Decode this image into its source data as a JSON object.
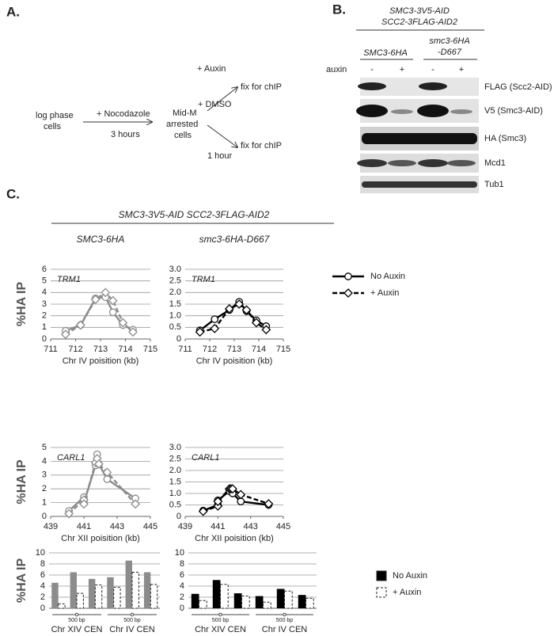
{
  "panel_a": {
    "label": "A.",
    "start": [
      "log phase",
      "cells"
    ],
    "treatment": "+ Nocodazole",
    "duration": "3 hours",
    "arrested": [
      "Mid-M",
      "arrested",
      "cells"
    ],
    "branch_1": "+ Auxin",
    "branch_2": "+ DMSO",
    "branch_duration": "1 hour",
    "end_1": "fix for chIP",
    "end_2": "fix for chIP"
  },
  "panel_b": {
    "label": "B.",
    "strain": [
      "SMC3-3V5-AID",
      "SCC2-3FLAG-AID2"
    ],
    "group_1": "SMC3-6HA",
    "group_2": [
      "smc3-6HA",
      "-D667"
    ],
    "row_label": "auxin",
    "lanes": [
      "-",
      "+",
      "-",
      "+"
    ],
    "blots": [
      "FLAG (Scc2-AID)",
      "V5 (Smc3-AID)",
      "HA (Smc3)",
      "Mcd1",
      "Tub1"
    ]
  },
  "panel_c": {
    "label": "C.",
    "strain": "SMC3-3V5-AID SCC2-3FLAG-AID2"
  },
  "chart_data": [
    {
      "type": "line",
      "title": "SMC3-6HA",
      "annotation": "TRM1",
      "x_label": "Chr IV poisition (kb)",
      "y_label": "%HA IP",
      "grid": true,
      "x": [
        711.6,
        712.2,
        712.8,
        713.2,
        713.5,
        713.9,
        714.3
      ],
      "xlim": [
        711,
        715
      ],
      "xticks": [
        711,
        712,
        713,
        714,
        715
      ],
      "ylim": [
        0,
        6
      ],
      "yticks": [
        0,
        1,
        2,
        3,
        4,
        5,
        6
      ],
      "series": [
        {
          "color": "#8c8c8c",
          "marker": "circle",
          "dashed": false,
          "values": [
            0.7,
            1.2,
            3.5,
            3.6,
            2.3,
            1.2,
            0.8
          ]
        },
        {
          "color": "#8c8c8c",
          "marker": "diamond",
          "dashed": true,
          "values": [
            0.4,
            1.2,
            3.4,
            4.0,
            3.3,
            1.4,
            0.6
          ]
        }
      ]
    },
    {
      "type": "line",
      "title": "smc3-6HA-D667",
      "annotation": "TRM1",
      "x_label": "Chr IV poisition (kb)",
      "grid": true,
      "legend": "right",
      "x": [
        711.6,
        712.2,
        712.8,
        713.2,
        713.5,
        713.9,
        714.3
      ],
      "xlim": [
        711,
        715
      ],
      "xticks": [
        711,
        712,
        713,
        714,
        715
      ],
      "ylim": [
        0,
        3
      ],
      "yticks": [
        0,
        0.5,
        {
          "value": 1,
          "label": "1.0"
        },
        1.5,
        {
          "value": 2,
          "label": "2.0"
        },
        2.5,
        {
          "value": 3,
          "label": "3.0"
        }
      ],
      "series": [
        {
          "name": "No Auxin",
          "color": "#000000",
          "marker": "circle",
          "dashed": false,
          "values": [
            0.37,
            0.85,
            1.25,
            1.6,
            1.2,
            0.8,
            0.55
          ]
        },
        {
          "name": "+ Auxin",
          "color": "#000000",
          "marker": "diamond",
          "dashed": true,
          "values": [
            0.3,
            0.45,
            1.3,
            1.5,
            1.25,
            0.7,
            0.4
          ]
        }
      ]
    },
    {
      "type": "line",
      "annotation": "CARL1",
      "x_label": "Chr XII poisition (kb)",
      "y_label": "%HA IP",
      "grid": true,
      "x": [
        440.1,
        441.0,
        441.0,
        441.7,
        441.8,
        441.9,
        442.4,
        444.1
      ],
      "xlim": [
        439,
        445
      ],
      "xticks": [
        439,
        441,
        443,
        445
      ],
      "ylim": [
        0,
        5
      ],
      "yticks": [
        0,
        1,
        2,
        3,
        4,
        5
      ],
      "series": [
        {
          "color": "#8c8c8c",
          "marker": "circle",
          "dashed": false,
          "values": [
            0.4,
            1.4,
            1.0,
            3.7,
            4.5,
            3.8,
            2.7,
            1.3
          ]
        },
        {
          "color": "#8c8c8c",
          "marker": "diamond",
          "dashed": true,
          "values": [
            0.2,
            1.2,
            0.9,
            3.9,
            4.2,
            3.8,
            3.2,
            0.9
          ]
        }
      ]
    },
    {
      "type": "line",
      "annotation": "CARL1",
      "x_label": "Chr XII poisition (kb)",
      "grid": true,
      "x": [
        440.1,
        441.0,
        441.0,
        441.7,
        441.8,
        441.9,
        442.4,
        444.1
      ],
      "xlim": [
        439,
        445
      ],
      "xticks": [
        439,
        441,
        443,
        445
      ],
      "ylim": [
        0,
        3
      ],
      "yticks": [
        0,
        0.5,
        {
          "value": 1,
          "label": "1.0"
        },
        1.5,
        {
          "value": 2,
          "label": "2.0"
        },
        2.5,
        {
          "value": 3,
          "label": "3.0"
        }
      ],
      "series": [
        {
          "color": "#000000",
          "marker": "circle",
          "dashed": false,
          "values": [
            0.25,
            0.5,
            0.7,
            1.1,
            1.2,
            1.0,
            0.65,
            0.5
          ]
        },
        {
          "color": "#000000",
          "marker": "diamond",
          "dashed": true,
          "values": [
            0.22,
            0.45,
            0.65,
            1.2,
            1.2,
            1.2,
            0.95,
            0.55
          ]
        }
      ]
    },
    {
      "type": "bar",
      "y_label": "%HA IP",
      "grid": true,
      "categories": [
        null,
        null,
        null,
        null,
        null,
        null
      ],
      "ylim": [
        0,
        10
      ],
      "yticks": [
        0,
        2,
        4,
        6,
        8,
        10
      ],
      "scale_labels": [
        "500 bp",
        "500 bp"
      ],
      "regions": [
        "Chr XIV CEN",
        "Chr IV CEN"
      ],
      "series": [
        {
          "color": "#8c8c8c",
          "dashed": false,
          "values": [
            4.6,
            6.5,
            5.3,
            5.6,
            8.6,
            6.5
          ]
        },
        {
          "color": "#ffffff",
          "dashed": true,
          "values": [
            0.8,
            2.7,
            4.2,
            3.8,
            6.5,
            4.3
          ]
        }
      ]
    },
    {
      "type": "bar",
      "grid": true,
      "legend": "right",
      "categories": [
        null,
        null,
        null,
        null,
        null,
        null
      ],
      "ylim": [
        0,
        10
      ],
      "yticks": [
        0,
        2,
        4,
        6,
        8,
        10
      ],
      "scale_labels": [
        "500 bp",
        "500 bp"
      ],
      "regions": [
        "Chr XIV CEN",
        "Chr IV CEN"
      ],
      "series": [
        {
          "name": "No Auxin",
          "color": "#000000",
          "dashed": false,
          "values": [
            2.6,
            5.1,
            2.7,
            2.2,
            3.5,
            2.4
          ]
        },
        {
          "name": "+ Auxin",
          "color": "#ffffff",
          "dashed": true,
          "values": [
            1.4,
            4.3,
            2.2,
            1.1,
            3.1,
            1.8
          ]
        }
      ]
    }
  ]
}
